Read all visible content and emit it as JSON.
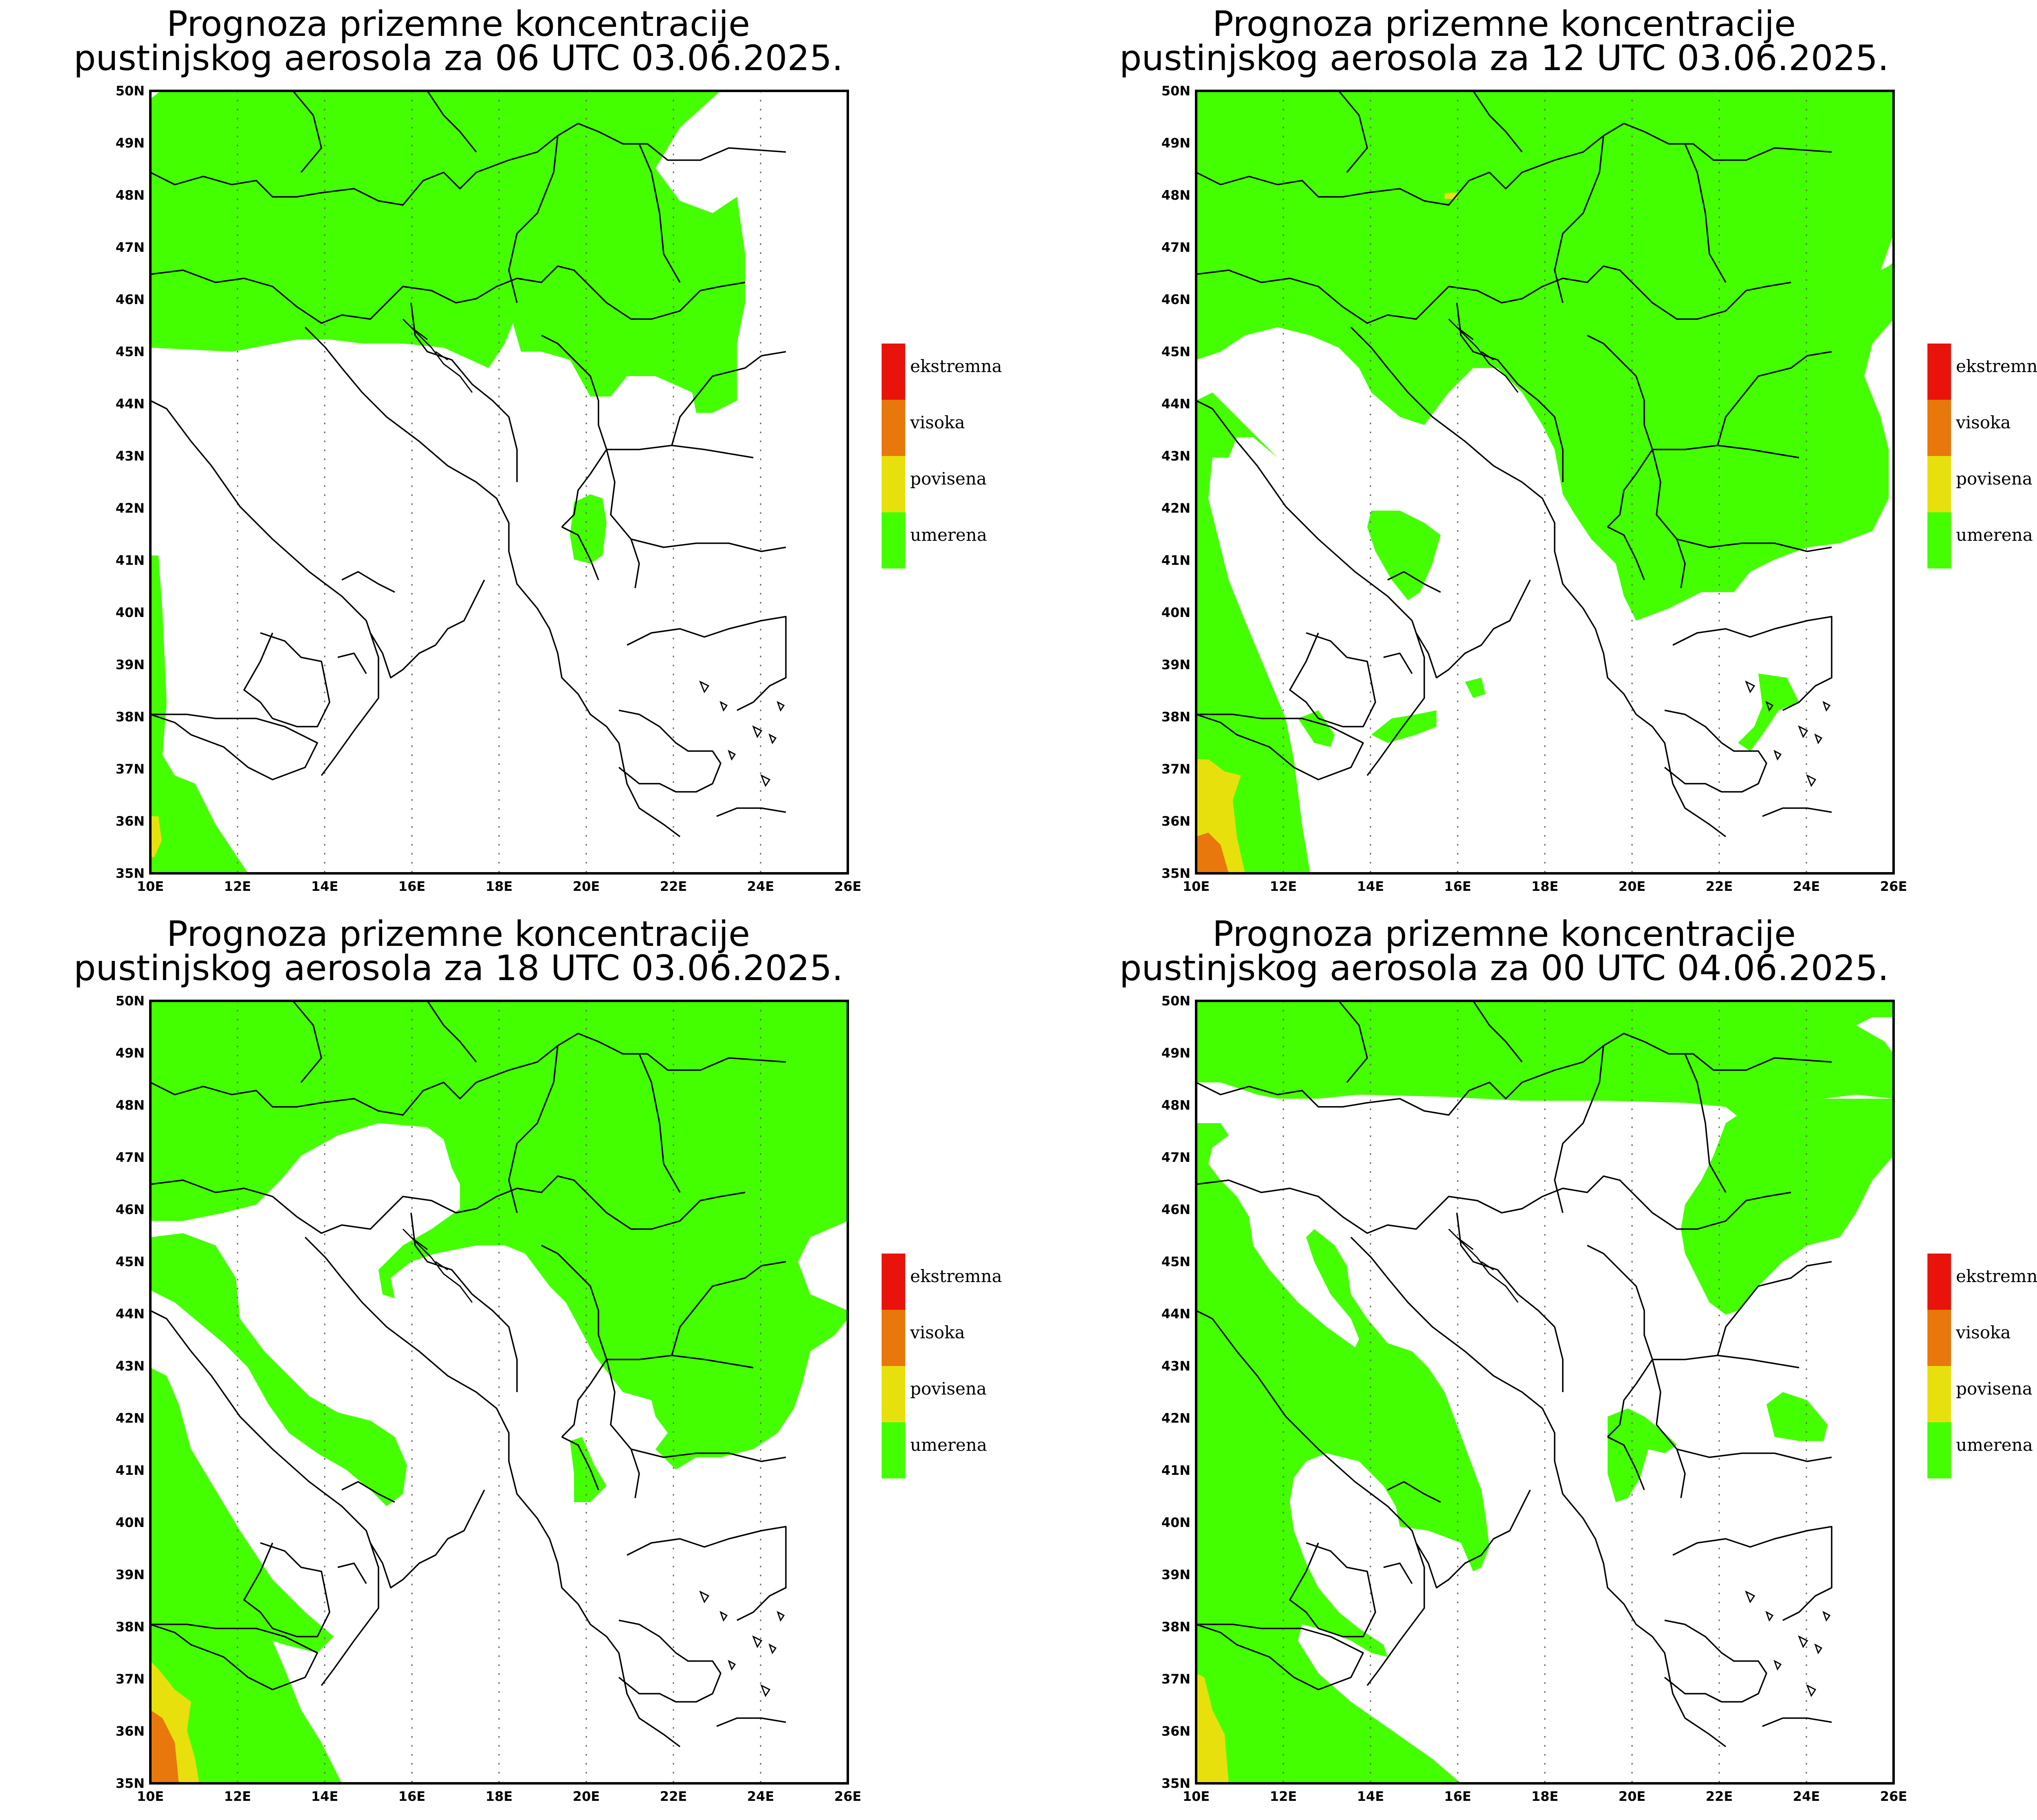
{
  "panels": [
    {
      "id": "p06",
      "title_line1": "Prognoza prizemne koncentracije",
      "title_line2": "pustinjskog aerosola za 06 UTC 03.06.2025."
    },
    {
      "id": "p12",
      "title_line1": "Prognoza prizemne koncentracije",
      "title_line2": "pustinjskog aerosola za 12 UTC 03.06.2025."
    },
    {
      "id": "p18",
      "title_line1": "Prognoza prizemne koncentracije",
      "title_line2": "pustinjskog aerosola za 18 UTC 03.06.2025."
    },
    {
      "id": "p00",
      "title_line1": "Prognoza prizemne koncentracije",
      "title_line2": "pustinjskog aerosola za 00 UTC 04.06.2025."
    }
  ],
  "axes": {
    "lat_labels": [
      "50N",
      "49N",
      "48N",
      "47N",
      "46N",
      "45N",
      "44N",
      "43N",
      "42N",
      "41N",
      "40N",
      "39N",
      "38N",
      "37N",
      "36N",
      "35N"
    ],
    "lon_labels": [
      "10E",
      "12E",
      "14E",
      "16E",
      "18E",
      "20E",
      "22E",
      "24E",
      "26E"
    ],
    "lat_range": [
      35,
      50
    ],
    "lon_range": [
      10,
      26
    ]
  },
  "legend": [
    {
      "label": "ekstremna",
      "color": "#e8140c"
    },
    {
      "label": "visoka",
      "color": "#e8780c"
    },
    {
      "label": "povisena",
      "color": "#e8e00c"
    },
    {
      "label": "umerena",
      "color": "#44ff00"
    }
  ],
  "colors": {
    "umerena": "#44ff00",
    "povisena": "#e8e00c",
    "visoka": "#e8780c",
    "ekstremna": "#e8140c"
  }
}
